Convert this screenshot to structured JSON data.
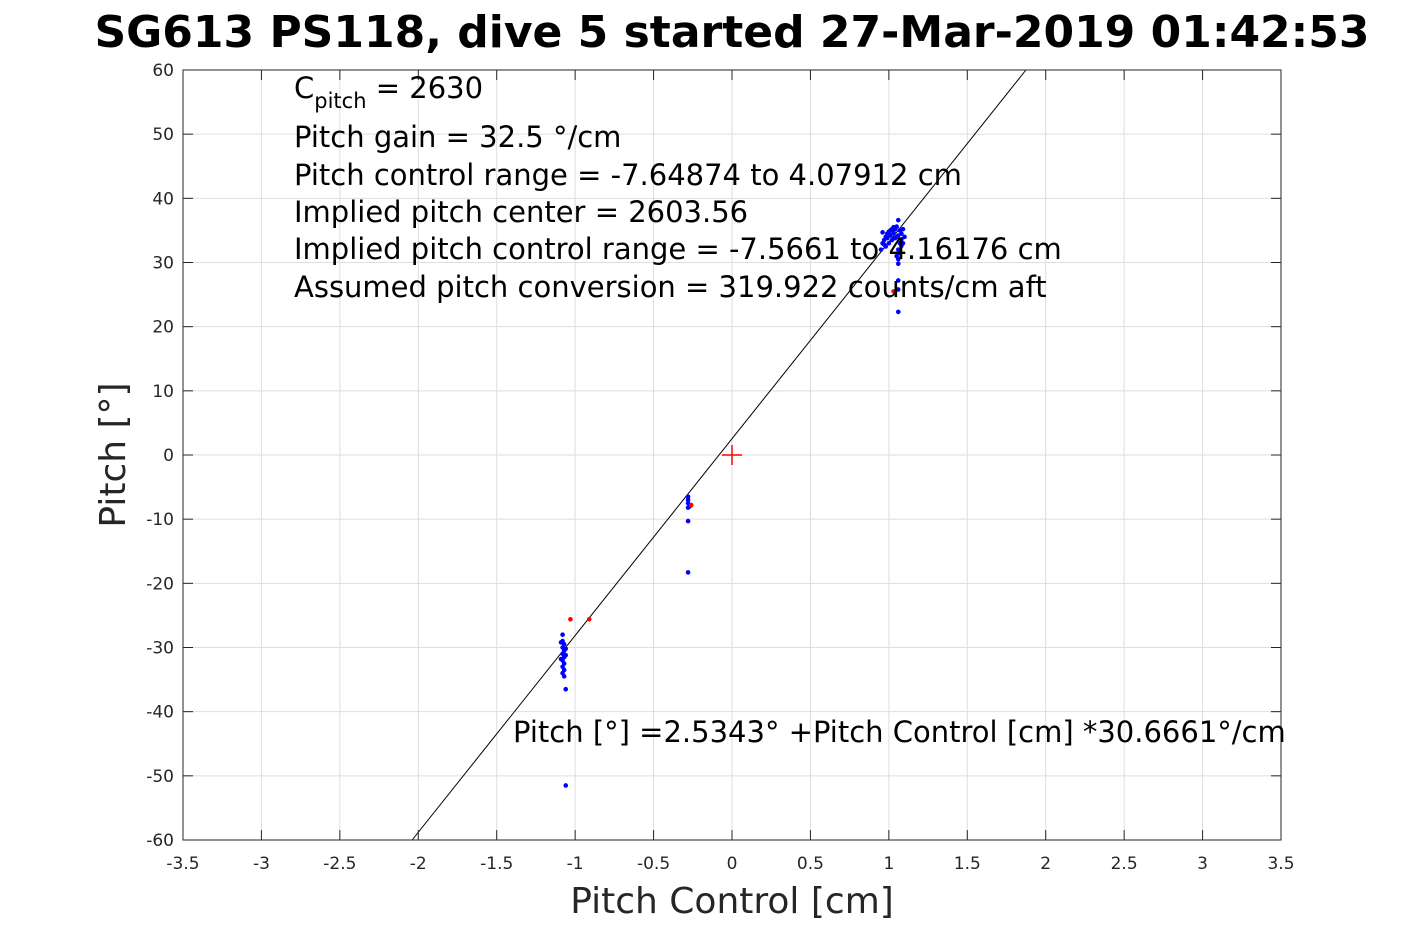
{
  "chart_data": {
    "type": "scatter",
    "title": "SG613 PS118, dive 5 started 27-Mar-2019 01:42:53",
    "xlabel": "Pitch Control [cm]",
    "ylabel": "Pitch [°]",
    "xlim": [
      -3.5,
      3.5
    ],
    "ylim": [
      -60,
      60
    ],
    "xticks": [
      "-3.5",
      "-3",
      "-2.5",
      "-2",
      "-1.5",
      "-1",
      "-0.5",
      "0",
      "0.5",
      "1",
      "1.5",
      "2",
      "2.5",
      "3",
      "3.5"
    ],
    "yticks": [
      "60",
      "50",
      "40",
      "30",
      "20",
      "10",
      "0",
      "-10",
      "-20",
      "-30",
      "-40",
      "-50",
      "-60"
    ],
    "grid": true,
    "annotations": {
      "cpitch_base": "C",
      "cpitch_sub": "pitch",
      "cpitch_value": " = 2630",
      "gain": "Pitch gain = 32.5 °/cm",
      "range": "Pitch control range = -7.64874 to 4.07912 cm",
      "center": "Implied pitch center = 2603.56",
      "implied_range": "Implied pitch control range = -7.5661 to 4.16176 cm",
      "conversion": "Assumed pitch conversion = 319.922 counts/cm aft",
      "fit_equation": "Pitch [°] =2.5343° +Pitch Control [cm] *30.6661°/cm"
    },
    "fit_line": {
      "intercept": 2.5343,
      "slope": 30.6661,
      "color": "#000000"
    },
    "origin_marker": {
      "x": 0,
      "y": 0,
      "color": "#ff0000"
    },
    "series": [
      {
        "color": "#0000ff",
        "points": [
          [
            -1.08,
            -28
          ],
          [
            -1.08,
            -29
          ],
          [
            -1.07,
            -29.5
          ],
          [
            -1.08,
            -30
          ],
          [
            -1.07,
            -30.5
          ],
          [
            -1.08,
            -31
          ],
          [
            -1.07,
            -31.5
          ],
          [
            -1.08,
            -32
          ],
          [
            -1.07,
            -32.5
          ],
          [
            -1.08,
            -33
          ],
          [
            -1.07,
            -33.5
          ],
          [
            -1.08,
            -34
          ],
          [
            -1.07,
            -34.5
          ],
          [
            -1.06,
            -30.2
          ],
          [
            -1.06,
            -31.2
          ],
          [
            -1.09,
            -29.2
          ],
          [
            -1.09,
            -31.8
          ],
          [
            -1.06,
            -36.5
          ],
          [
            -1.06,
            -51.5
          ],
          [
            -0.28,
            -6.5
          ],
          [
            -0.28,
            -7
          ],
          [
            -0.28,
            -7.5
          ],
          [
            -0.27,
            -8
          ],
          [
            -0.28,
            -8.2
          ],
          [
            -0.28,
            -10.3
          ],
          [
            -0.28,
            -18.3
          ],
          [
            0.95,
            32
          ],
          [
            0.96,
            33
          ],
          [
            0.97,
            33.5
          ],
          [
            0.98,
            34
          ],
          [
            0.99,
            34.5
          ],
          [
            1.0,
            34.8
          ],
          [
            1.01,
            35
          ],
          [
            1.02,
            35.2
          ],
          [
            1.03,
            35.5
          ],
          [
            1.04,
            35.2
          ],
          [
            1.05,
            35.6
          ],
          [
            1.06,
            36.6
          ],
          [
            1.07,
            35
          ],
          [
            1.08,
            34.5
          ],
          [
            1.09,
            35.2
          ],
          [
            1.1,
            34
          ],
          [
            0.96,
            34.7
          ],
          [
            0.98,
            32.5
          ],
          [
            1.0,
            33
          ],
          [
            1.02,
            33.5
          ],
          [
            1.04,
            33.8
          ],
          [
            1.06,
            34.2
          ],
          [
            1.08,
            33.6
          ],
          [
            1.07,
            33
          ],
          [
            1.06,
            32
          ],
          [
            1.06,
            30.5
          ],
          [
            1.06,
            29.8
          ],
          [
            1.05,
            31
          ],
          [
            1.07,
            31.5
          ],
          [
            1.08,
            32.6
          ],
          [
            1.09,
            33
          ],
          [
            0.97,
            32.8
          ],
          [
            0.99,
            33.8
          ],
          [
            1.01,
            34.2
          ],
          [
            1.03,
            34.6
          ],
          [
            1.05,
            34
          ],
          [
            1.06,
            27.2
          ],
          [
            1.06,
            25.8
          ],
          [
            1.06,
            22.3
          ]
        ]
      },
      {
        "color": "#ff0000",
        "points": [
          [
            -1.03,
            -25.6
          ],
          [
            -0.91,
            -25.6
          ],
          [
            -0.26,
            -7.8
          ],
          [
            1.03,
            25.5
          ]
        ]
      }
    ]
  }
}
